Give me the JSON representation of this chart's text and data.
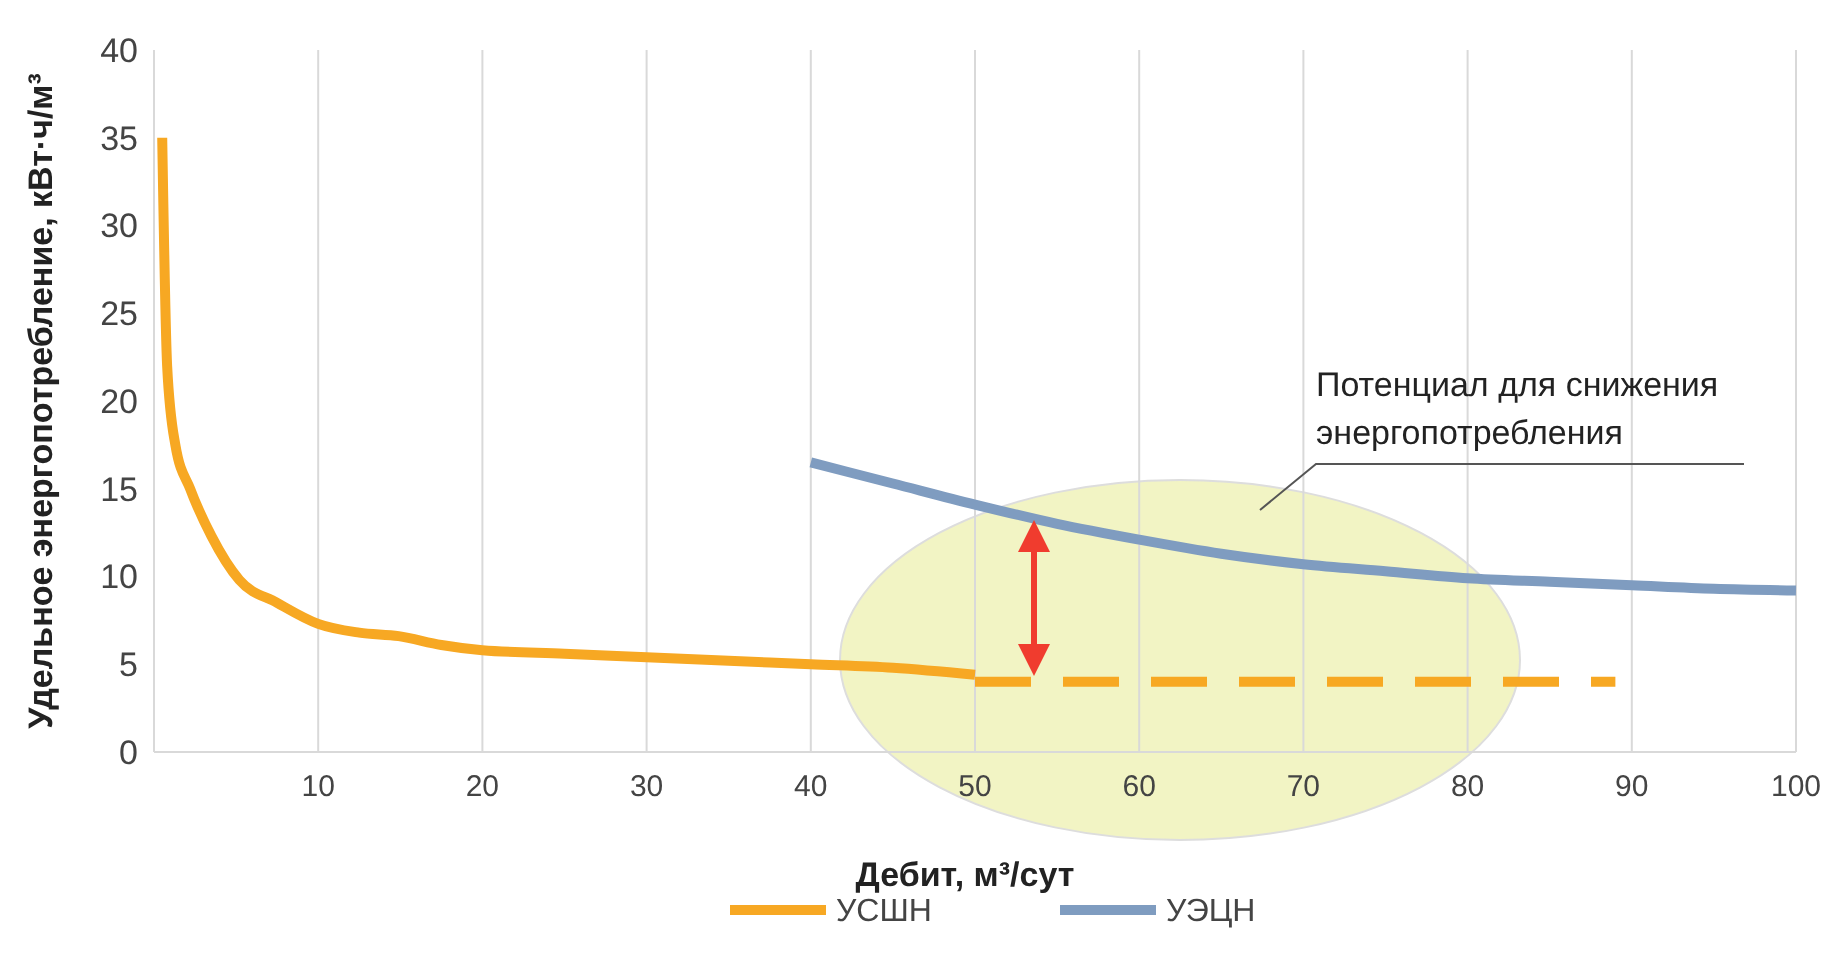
{
  "chart_data": {
    "type": "line",
    "xlabel": "Дебит, м³/сут",
    "ylabel": "Удельное энергопотребление, кВт·ч/м³",
    "xlim": [
      0,
      100
    ],
    "xticks": [
      10,
      20,
      30,
      40,
      50,
      60,
      70,
      80,
      90,
      100
    ],
    "ylim": [
      0,
      40
    ],
    "yticks": [
      0,
      5,
      10,
      15,
      20,
      25,
      30,
      35,
      40
    ],
    "grid": "x",
    "legend": "bottom",
    "line_style": "solid",
    "marker": "none",
    "annotations": [
      "Потенциал для снижения\nэнергопотребления"
    ],
    "series": [
      {
        "name": "УСШН",
        "color": "#f7a823",
        "x": [
          0.5,
          0.8,
          1.3,
          2.2,
          3.5,
          5.2,
          7.5,
          10,
          12.5,
          14.9,
          17.5,
          20,
          25,
          30,
          35,
          40,
          45,
          50
        ],
        "values": [
          35,
          22,
          17.5,
          15,
          12.3,
          9.8,
          8.5,
          7.3,
          6.8,
          6.6,
          6.1,
          5.8,
          5.6,
          5.4,
          5.2,
          5,
          4.8,
          4.4
        ]
      },
      {
        "color": "#f7a823",
        "line_style": "dashed",
        "x": [
          50,
          89
        ],
        "values": [
          4,
          4
        ]
      },
      {
        "name": "УЭЦН",
        "color": "#7f9cc0",
        "x": [
          40,
          45,
          50,
          55,
          60,
          65,
          70,
          75,
          80,
          85,
          90,
          95,
          100
        ],
        "values": [
          16.5,
          15.3,
          14.1,
          13,
          12.1,
          11.3,
          10.7,
          10.3,
          9.9,
          9.7,
          9.5,
          9.3,
          9.2
        ]
      }
    ]
  }
}
